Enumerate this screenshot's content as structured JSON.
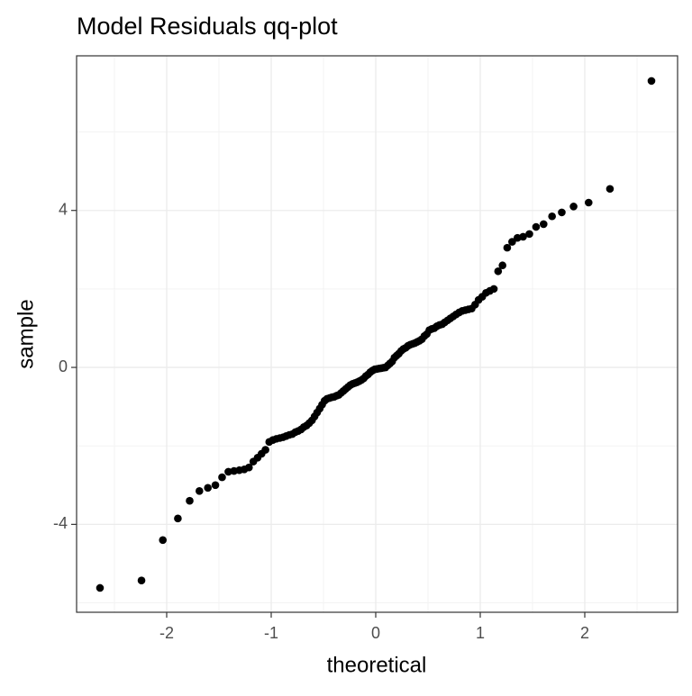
{
  "chart_data": {
    "type": "scatter",
    "title": "Model Residuals qq-plot",
    "x_label": "theoretical",
    "y_label": "sample",
    "color": "#000000",
    "grid": true,
    "xlim": [
      -2.862,
      2.888
    ],
    "ylim": [
      -6.24,
      7.94
    ],
    "xticks": [
      -2,
      -1,
      0,
      1,
      2
    ],
    "yticks": [
      -4,
      0,
      4
    ],
    "xminor": [
      -2.5,
      -1.5,
      -0.5,
      0.5,
      1.5,
      2.5
    ],
    "yminor": [
      -6,
      -2,
      2,
      6
    ],
    "x": [
      -2.638,
      -2.241,
      -2.037,
      -1.893,
      -1.78,
      -1.687,
      -1.606,
      -1.534,
      -1.47,
      -1.41,
      -1.356,
      -1.305,
      -1.258,
      -1.213,
      -1.171,
      -1.13,
      -1.092,
      -1.055,
      -1.019,
      -0.984,
      -0.951,
      -0.918,
      -0.887,
      -0.857,
      -0.827,
      -0.798,
      -0.769,
      -0.742,
      -0.714,
      -0.688,
      -0.661,
      -0.636,
      -0.61,
      -0.585,
      -0.561,
      -0.536,
      -0.513,
      -0.489,
      -0.466,
      -0.442,
      -0.419,
      -0.397,
      -0.374,
      -0.353,
      -0.331,
      -0.309,
      -0.287,
      -0.265,
      -0.243,
      -0.221,
      -0.2,
      -0.179,
      -0.157,
      -0.136,
      -0.115,
      -0.094,
      -0.073,
      -0.052,
      -0.031,
      -0.01,
      0.01,
      0.031,
      0.052,
      0.073,
      0.094,
      0.115,
      0.136,
      0.157,
      0.179,
      0.2,
      0.221,
      0.243,
      0.265,
      0.287,
      0.309,
      0.331,
      0.353,
      0.374,
      0.397,
      0.419,
      0.442,
      0.466,
      0.489,
      0.513,
      0.536,
      0.561,
      0.585,
      0.61,
      0.636,
      0.661,
      0.688,
      0.714,
      0.742,
      0.769,
      0.798,
      0.827,
      0.857,
      0.887,
      0.918,
      0.951,
      0.984,
      1.019,
      1.055,
      1.092,
      1.13,
      1.171,
      1.213,
      1.258,
      1.305,
      1.356,
      1.41,
      1.47,
      1.534,
      1.606,
      1.687,
      1.78,
      1.893,
      2.037,
      2.241,
      2.638
    ],
    "values": [
      -5.62,
      -5.43,
      -4.4,
      -3.85,
      -3.4,
      -3.15,
      -3.07,
      -3.0,
      -2.8,
      -2.66,
      -2.64,
      -2.62,
      -2.6,
      -2.55,
      -2.4,
      -2.3,
      -2.2,
      -2.1,
      -1.9,
      -1.85,
      -1.82,
      -1.8,
      -1.78,
      -1.75,
      -1.72,
      -1.7,
      -1.65,
      -1.62,
      -1.58,
      -1.52,
      -1.48,
      -1.42,
      -1.35,
      -1.25,
      -1.15,
      -1.05,
      -0.95,
      -0.85,
      -0.8,
      -0.78,
      -0.76,
      -0.75,
      -0.72,
      -0.7,
      -0.65,
      -0.6,
      -0.55,
      -0.5,
      -0.45,
      -0.42,
      -0.4,
      -0.38,
      -0.35,
      -0.32,
      -0.28,
      -0.22,
      -0.18,
      -0.12,
      -0.08,
      -0.05,
      -0.04,
      -0.03,
      -0.02,
      -0.01,
      0,
      0.05,
      0.1,
      0.15,
      0.25,
      0.3,
      0.35,
      0.42,
      0.47,
      0.5,
      0.55,
      0.58,
      0.6,
      0.62,
      0.65,
      0.68,
      0.72,
      0.8,
      0.85,
      0.95,
      0.98,
      1.0,
      1.05,
      1.08,
      1.1,
      1.15,
      1.2,
      1.25,
      1.3,
      1.35,
      1.4,
      1.44,
      1.46,
      1.48,
      1.5,
      1.6,
      1.72,
      1.8,
      1.9,
      1.95,
      2.0,
      2.45,
      2.6,
      3.05,
      3.2,
      3.3,
      3.33,
      3.4,
      3.58,
      3.65,
      3.85,
      3.95,
      4.1,
      4.2,
      4.55,
      7.3
    ]
  }
}
